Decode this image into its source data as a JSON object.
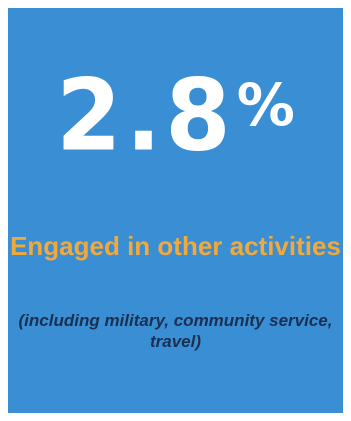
{
  "stat": {
    "number": "2.8",
    "percent_sign": "%"
  },
  "headline": "Engaged in other activities",
  "subline": "(including military, community service, travel)",
  "colors": {
    "background": "#3a8fd4",
    "headline": "#f2a83a",
    "stat": "#ffffff",
    "subline": "#1a2f52"
  }
}
